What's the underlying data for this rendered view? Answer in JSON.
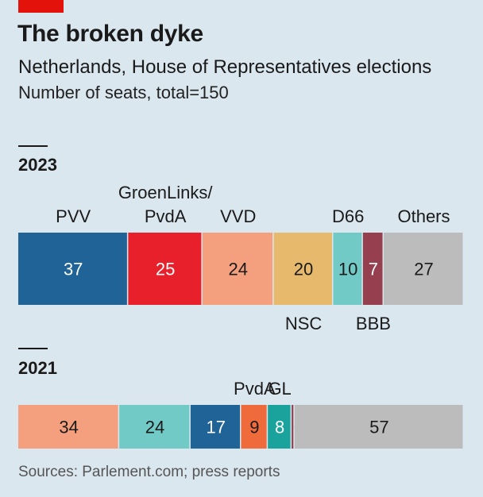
{
  "header": {
    "title": "The broken dyke",
    "subtitle": "Netherlands, House of Representatives elections",
    "subtitle2": "Number of seats, total=150"
  },
  "source": "Sources: Parlement.com; press reports",
  "colors": {
    "accent": "#e3120b",
    "PVV": "#1f6397",
    "GroenLinks/PvdA": "#e8202b",
    "VVD": "#f4a07f",
    "NSC": "#e6b96c",
    "D66": "#72cac7",
    "BBB": "#953f4f",
    "Others": "#bcbcbc",
    "PvdA": "#f06b3c",
    "GL": "#1aa39c",
    "PVV_2021": "#1f6397",
    "small": "#953f4f"
  },
  "chart_data": [
    {
      "type": "bar",
      "orientation": "horizontal-stacked",
      "title": "2023",
      "total": 150,
      "segments": [
        {
          "party": "PVV",
          "label": "PVV",
          "value": 37,
          "label_pos": "above"
        },
        {
          "party": "GroenLinks/PvdA",
          "label": "GroenLinks/\nPvdA",
          "value": 25,
          "label_pos": "above"
        },
        {
          "party": "VVD",
          "label": "VVD",
          "value": 24,
          "label_pos": "above"
        },
        {
          "party": "NSC",
          "label": "NSC",
          "value": 20,
          "label_pos": "below"
        },
        {
          "party": "D66",
          "label": "D66",
          "value": 10,
          "label_pos": "above"
        },
        {
          "party": "BBB",
          "label": "BBB",
          "value": 7,
          "label_pos": "below"
        },
        {
          "party": "Others",
          "label": "Others",
          "value": 27,
          "label_pos": "above"
        }
      ]
    },
    {
      "type": "bar",
      "orientation": "horizontal-stacked",
      "title": "2021",
      "total": 150,
      "segments": [
        {
          "party": "VVD",
          "label": "",
          "value": 34
        },
        {
          "party": "D66",
          "label": "",
          "value": 24
        },
        {
          "party": "PVV",
          "label": "",
          "value": 17
        },
        {
          "party": "PvdA",
          "label": "PvdA",
          "value": 9,
          "label_pos": "above"
        },
        {
          "party": "GL",
          "label": "GL",
          "value": 8,
          "label_pos": "above"
        },
        {
          "party": "BBB",
          "label": "",
          "value": 1,
          "callout": true
        },
        {
          "party": "Others",
          "label": "",
          "value": 57
        }
      ]
    }
  ]
}
